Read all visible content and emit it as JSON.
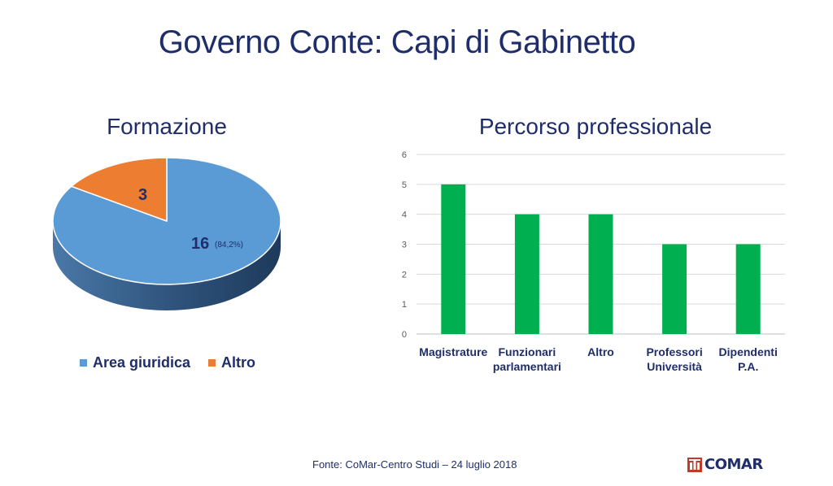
{
  "slide": {
    "title": "Governo Conte: Capi di Gabinetto",
    "footer_source": "Fonte: CoMar-Centro Studi – 24 luglio 2018",
    "logo_text": "COMAR"
  },
  "chart_data": [
    {
      "type": "pie",
      "title": "Formazione",
      "slices": [
        {
          "name": "Area giuridica",
          "value": 16,
          "label": "16",
          "percent_label": "(84,2%)",
          "color": "#5B9BD5"
        },
        {
          "name": "Altro",
          "value": 3,
          "label": "3",
          "color": "#ED7D31"
        }
      ],
      "legend_position": "bottom"
    },
    {
      "type": "bar",
      "title": "Percorso professionale",
      "categories": [
        "Magistrature",
        "Funzionari parlamentari",
        "Altro",
        "Professori Università",
        "Dipendenti P.A."
      ],
      "category_lines": [
        [
          "Magistrature"
        ],
        [
          "Funzionari",
          "parlamentari"
        ],
        [
          "Altro"
        ],
        [
          "Professori",
          "Università"
        ],
        [
          "Dipendenti",
          "P.A."
        ]
      ],
      "values": [
        5,
        4,
        4,
        3,
        3
      ],
      "ylim": [
        0,
        6
      ],
      "yticks": [
        0,
        1,
        2,
        3,
        4,
        5,
        6
      ],
      "grid": true,
      "bar_color": "#00B050"
    }
  ]
}
